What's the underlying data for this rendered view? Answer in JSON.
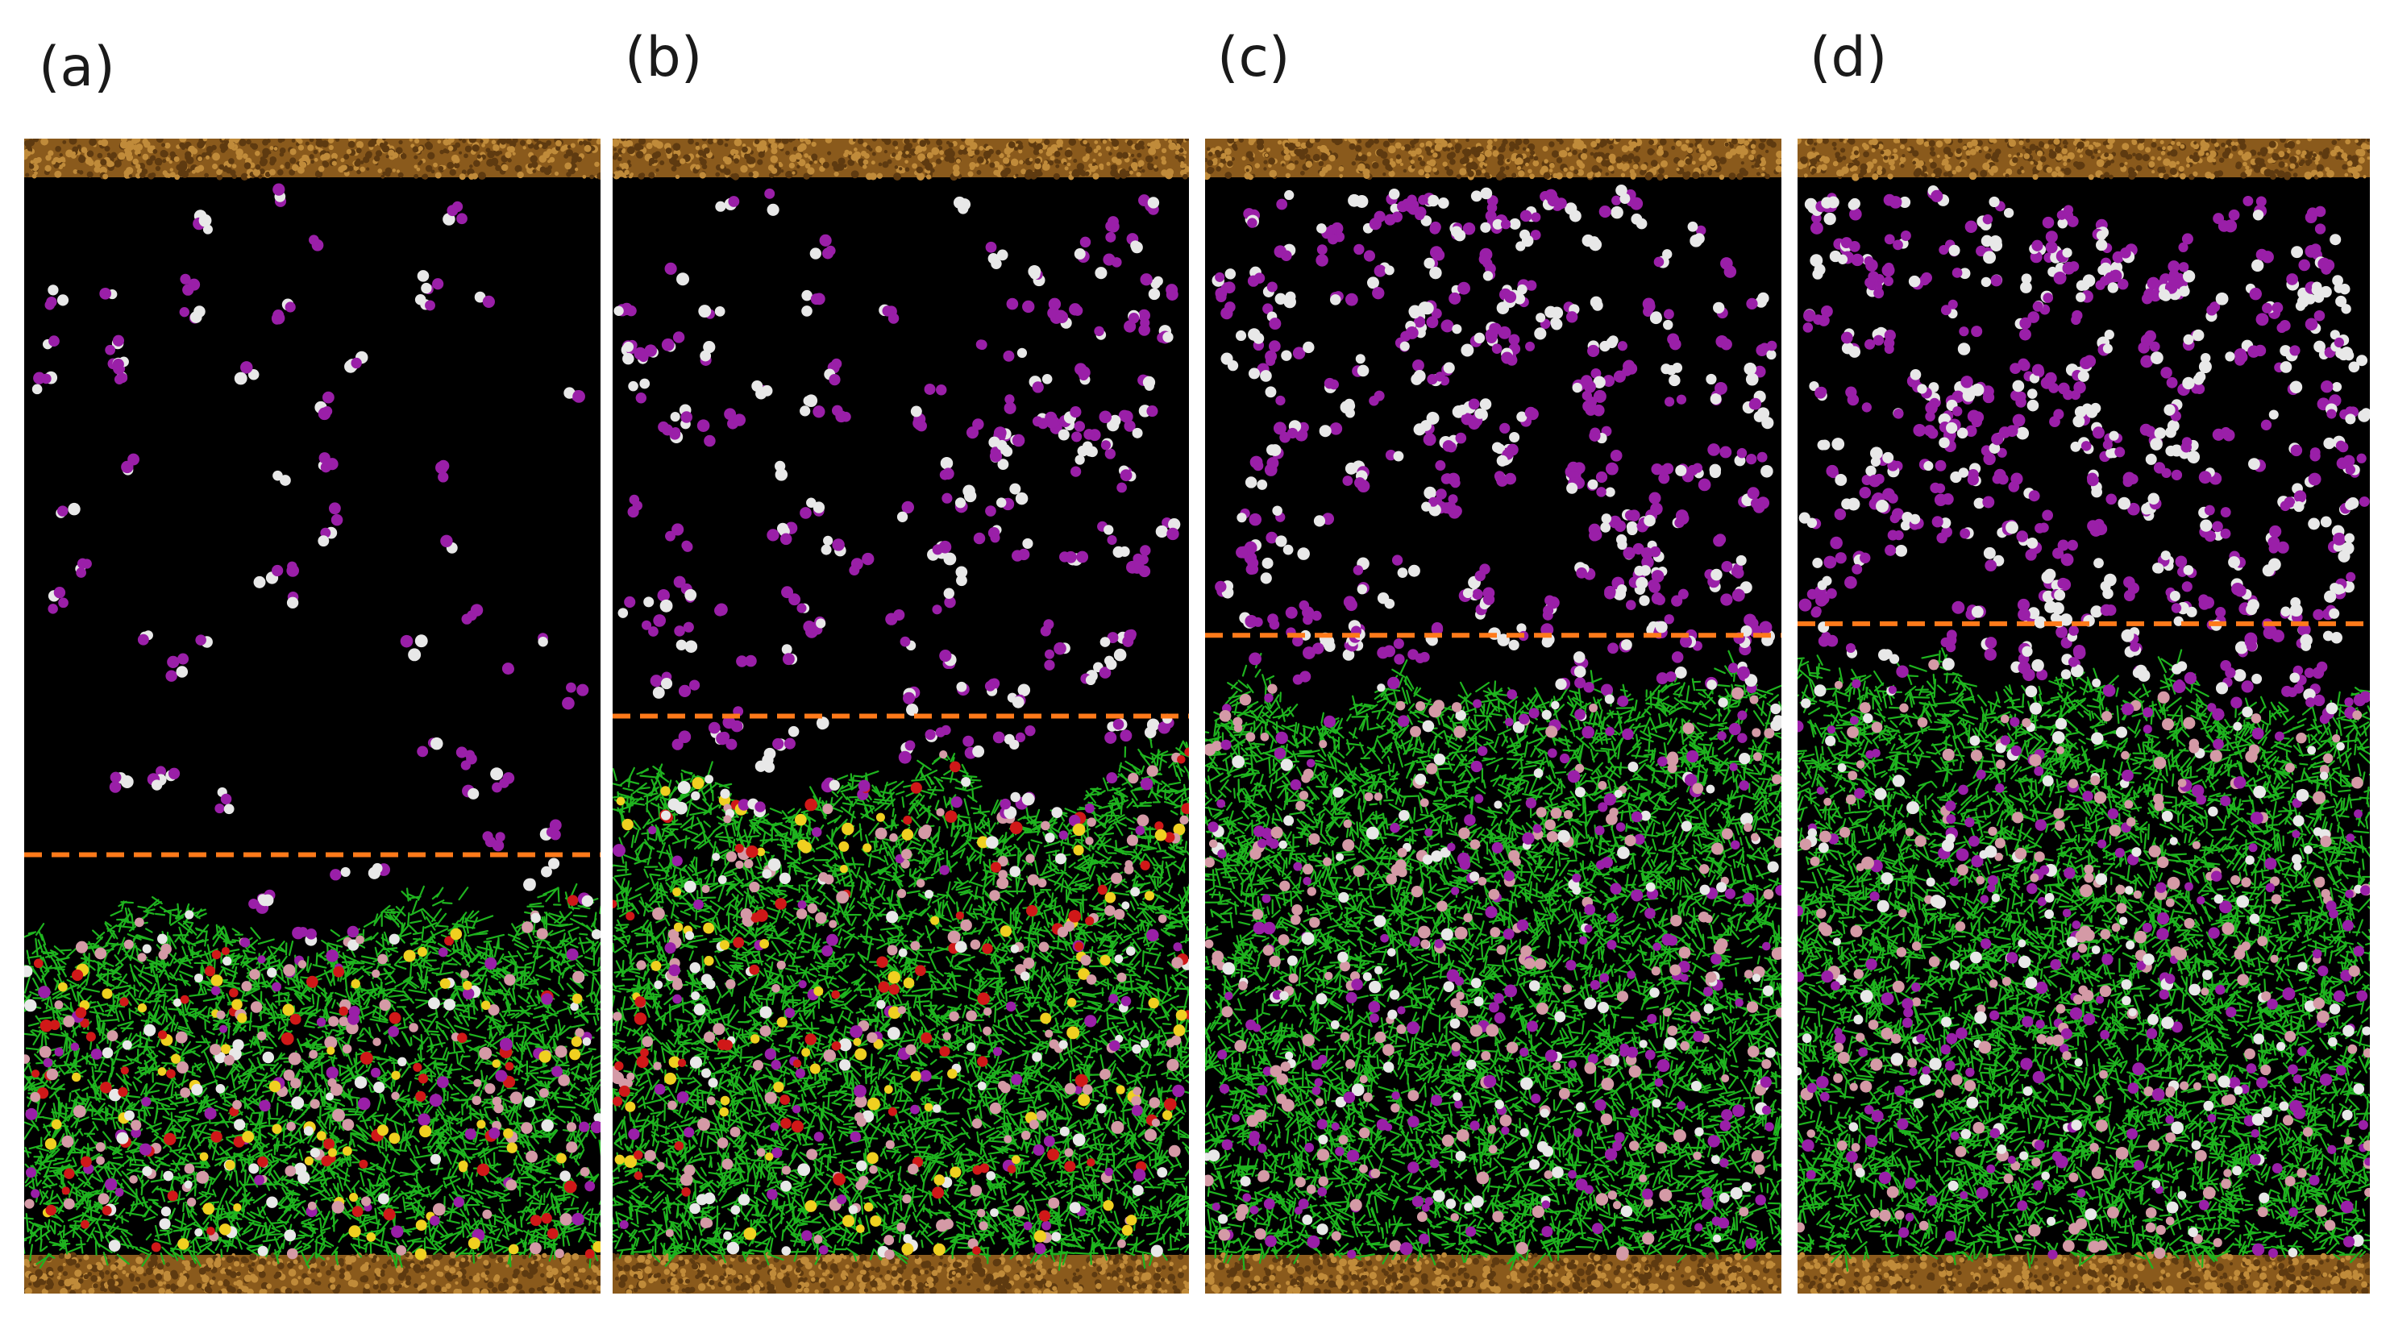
{
  "figure": {
    "panels": [
      {
        "label": "(a)",
        "interface_level": 0.62
      },
      {
        "label": "(b)",
        "interface_level": 0.5
      },
      {
        "label": "(c)",
        "interface_level": 0.43
      },
      {
        "label": "(d)",
        "interface_level": 0.42
      }
    ],
    "colors": {
      "background": "#000000",
      "wall": "#8a5a1c",
      "wall_highlight": "#c08b3a",
      "interface_line": "#ff7a1a",
      "network": "#1fb41f",
      "molecule_purple": "#9a1fa8",
      "molecule_white": "#e8e8e8",
      "molecule_pink": "#d49aa6",
      "molecule_yellow": "#f0d020",
      "molecule_red": "#d01818"
    }
  }
}
